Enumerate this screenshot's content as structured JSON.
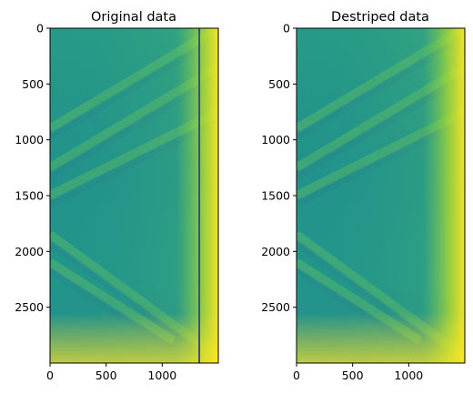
{
  "chart_data": [
    {
      "type": "heatmap",
      "title": "Original data",
      "xlabel": "",
      "ylabel": "",
      "x_extent": [
        0,
        1500
      ],
      "y_extent": [
        0,
        3000
      ],
      "y_inverted": true,
      "x_ticks": [
        0,
        500,
        1000
      ],
      "y_ticks": [
        0,
        500,
        1000,
        1500,
        2000,
        2500
      ],
      "colormap": "viridis",
      "stripe": {
        "x": 1330,
        "color": "#3b4f8a"
      },
      "diagonal_bands": [
        {
          "x0": 0,
          "y0": 900,
          "x1": 1500,
          "y1": 0
        },
        {
          "x0": 0,
          "y0": 1250,
          "x1": 1500,
          "y1": 350
        },
        {
          "x0": 0,
          "y0": 1500,
          "x1": 1500,
          "y1": 750
        },
        {
          "x0": 0,
          "y0": 1850,
          "x1": 1500,
          "y1": 2950
        },
        {
          "x0": 0,
          "y0": 2100,
          "x1": 1100,
          "y1": 2800
        }
      ]
    },
    {
      "type": "heatmap",
      "title": "Destriped data",
      "xlabel": "",
      "ylabel": "",
      "x_extent": [
        0,
        1500
      ],
      "y_extent": [
        0,
        3000
      ],
      "y_inverted": true,
      "x_ticks": [
        0,
        500,
        1000
      ],
      "y_ticks": [
        0,
        500,
        1000,
        1500,
        2000,
        2500
      ],
      "colormap": "viridis",
      "diagonal_bands": [
        {
          "x0": 0,
          "y0": 900,
          "x1": 1500,
          "y1": 0
        },
        {
          "x0": 0,
          "y0": 1250,
          "x1": 1500,
          "y1": 350
        },
        {
          "x0": 0,
          "y0": 1500,
          "x1": 1500,
          "y1": 750
        },
        {
          "x0": 0,
          "y0": 1850,
          "x1": 1500,
          "y1": 2950
        },
        {
          "x0": 0,
          "y0": 2100,
          "x1": 1100,
          "y1": 2800
        }
      ]
    }
  ]
}
